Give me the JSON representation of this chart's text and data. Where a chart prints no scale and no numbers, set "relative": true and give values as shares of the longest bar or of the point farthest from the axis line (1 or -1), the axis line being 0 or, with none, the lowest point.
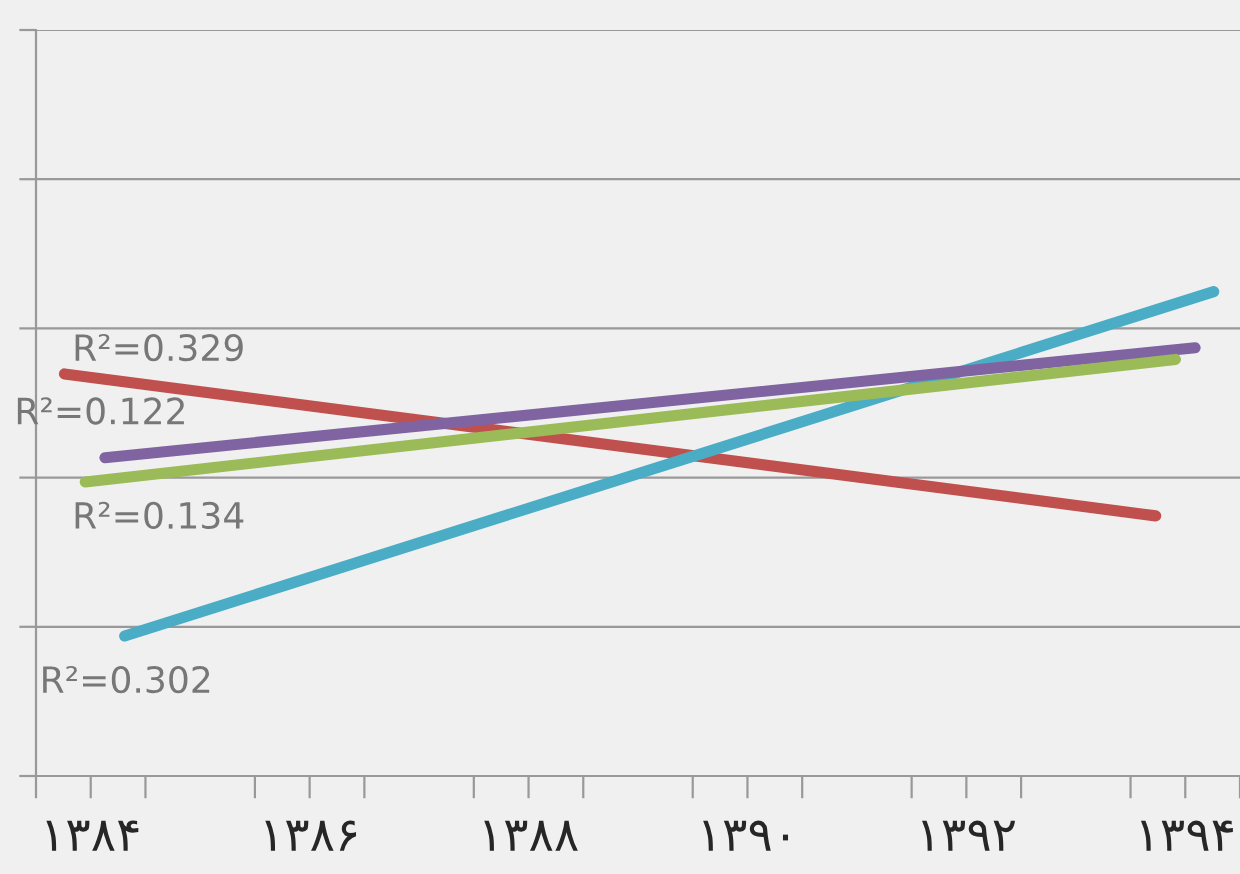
{
  "chart_data": {
    "type": "line",
    "relative": true,
    "grid": "y",
    "marker": "none",
    "line_style": "solid",
    "xlim": [
      1383.5,
      1394.5
    ],
    "xticks": [
      {
        "value": 1383.5,
        "label": null
      },
      {
        "value": 1384,
        "label": "۱۳۸۴"
      },
      {
        "value": 1384.5,
        "label": null
      },
      {
        "value": 1385.5,
        "label": null
      },
      {
        "value": 1386,
        "label": "۱۳۸۶"
      },
      {
        "value": 1386.5,
        "label": null
      },
      {
        "value": 1387.5,
        "label": null
      },
      {
        "value": 1388,
        "label": "۱۳۸۸"
      },
      {
        "value": 1388.5,
        "label": null
      },
      {
        "value": 1389.5,
        "label": null
      },
      {
        "value": 1390,
        "label": "۱۳۹۰"
      },
      {
        "value": 1390.5,
        "label": null
      },
      {
        "value": 1391.5,
        "label": null
      },
      {
        "value": 1392,
        "label": "۱۳۹۲"
      },
      {
        "value": 1392.5,
        "label": null
      },
      {
        "value": 1393.5,
        "label": null
      },
      {
        "value": 1394,
        "label": "۱۳۹۴"
      },
      {
        "value": 1394.5,
        "label": null
      }
    ],
    "series": [
      {
        "color": "#c0504d",
        "x": [
          1383.76,
          1393.73
        ],
        "values": [
          0.83,
          0.537
        ]
      },
      {
        "color": "#4bacc6",
        "x": [
          1384.31,
          1394.26
        ],
        "values": [
          0.289,
          1
        ]
      },
      {
        "color": "#8064a2",
        "x": [
          1384.13,
          1394.09
        ],
        "values": [
          0.657,
          0.884
        ]
      },
      {
        "color": "#9bbb59",
        "x": [
          1383.95,
          1393.91
        ],
        "values": [
          0.607,
          0.86
        ]
      }
    ],
    "annotations": [
      "R²=0.329",
      "R²=0.122",
      "R²=0.134",
      "R²=0.302"
    ]
  }
}
